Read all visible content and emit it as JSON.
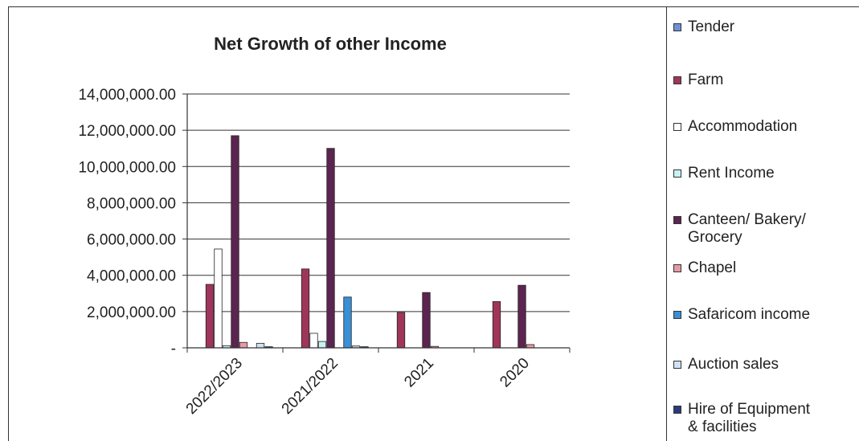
{
  "chart_data": {
    "type": "bar",
    "title": "Net Growth of other Income",
    "xlabel": "",
    "ylabel": "",
    "categories": [
      "2022/2023",
      "2021/2022",
      "2021",
      "2020"
    ],
    "ylim": [
      0,
      14000000
    ],
    "yticks": [
      0,
      2000000,
      4000000,
      6000000,
      8000000,
      10000000,
      12000000,
      14000000
    ],
    "ytick_labels": [
      "-",
      "2,000,000.00",
      "4,000,000.00",
      "6,000,000.00",
      "8,000,000.00",
      "10,000,000.00",
      "12,000,000.00",
      "14,000,000.00"
    ],
    "grid": true,
    "legend_position": "right",
    "series": [
      {
        "name": "Tender",
        "color": "#6f8fd8",
        "values": [
          0,
          0,
          0,
          0
        ]
      },
      {
        "name": "Farm",
        "color": "#a0355b",
        "values": [
          3500000,
          4350000,
          1950000,
          2550000
        ]
      },
      {
        "name": "Accommodation",
        "color": "#ffffff",
        "values": [
          5450000,
          800000,
          0,
          0
        ]
      },
      {
        "name": "Rent Income",
        "color": "#c9f2f2",
        "values": [
          120000,
          350000,
          0,
          0
        ]
      },
      {
        "name": "Canteen/ Bakery/ Grocery",
        "color": "#5c2450",
        "values": [
          11700000,
          11000000,
          3050000,
          3450000
        ]
      },
      {
        "name": "Chapel",
        "color": "#e899a8",
        "values": [
          300000,
          0,
          80000,
          180000
        ]
      },
      {
        "name": "Safaricom income",
        "color": "#3a8fd6",
        "values": [
          0,
          2800000,
          0,
          0
        ]
      },
      {
        "name": "Auction sales",
        "color": "#cfe2f3",
        "values": [
          250000,
          100000,
          0,
          0
        ]
      },
      {
        "name": "Hire of Equipment & facilities",
        "color": "#2d3a7a",
        "values": [
          60000,
          60000,
          0,
          0
        ]
      }
    ]
  },
  "legend": {
    "items": [
      {
        "label": "Tender",
        "color": "#6f8fd8"
      },
      {
        "label": "Farm",
        "color": "#a0355b"
      },
      {
        "label": "Accommodation",
        "color": "#ffffff"
      },
      {
        "label": "Rent Income",
        "color": "#c9f2f2"
      },
      {
        "label": "Canteen/ Bakery/\nGrocery",
        "color": "#5c2450"
      },
      {
        "label": "Chapel",
        "color": "#e899a8"
      },
      {
        "label": "Safaricom income",
        "color": "#3a8fd6"
      },
      {
        "label": "Auction sales",
        "color": "#cfe2f3"
      },
      {
        "label": "Hire of Equipment\n& facilities",
        "color": "#2d3a7a"
      }
    ]
  }
}
